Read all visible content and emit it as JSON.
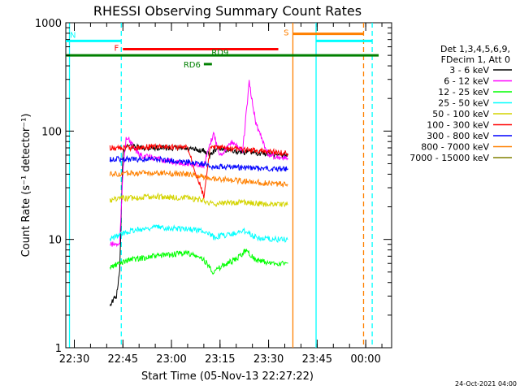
{
  "chart_data": {
    "type": "line",
    "title": "RHESSI Observing Summary Count Rates",
    "xlabel": "Start Time (05-Nov-13 22:27:22)",
    "ylabel": "Count Rate (s⁻¹ detector⁻¹)",
    "yscale": "log",
    "ylim": [
      1,
      1000
    ],
    "xlim": [
      "22:27:22",
      "00:08:00"
    ],
    "x_ticks": [
      "22:30",
      "22:45",
      "23:00",
      "23:15",
      "23:30",
      "23:45",
      "00:00"
    ],
    "y_ticks": [
      "1",
      "10",
      "100",
      "1000"
    ],
    "footer": "24-Oct-2021 04:00",
    "legend_header": [
      "Det 1,3,4,5,6,9,",
      "FDecim 1, Att 0"
    ],
    "legend_position": "right",
    "series": [
      {
        "name": "3 - 6 keV",
        "color": "#000000",
        "x": [
          "22:41",
          "22:43",
          "22:44",
          "22:45",
          "22:46",
          "22:50",
          "23:00",
          "23:10",
          "23:12",
          "23:14",
          "23:20",
          "23:30",
          "23:36"
        ],
        "y": [
          2.5,
          3,
          5,
          60,
          75,
          70,
          70,
          66,
          60,
          70,
          65,
          62,
          60
        ]
      },
      {
        "name": "6 - 12 keV",
        "color": "#ff00ff",
        "x": [
          "22:41",
          "22:44",
          "22:45",
          "22:46",
          "22:50",
          "23:00",
          "23:10",
          "23:13",
          "23:15",
          "23:19",
          "23:22",
          "23:24",
          "23:26",
          "23:30",
          "23:36"
        ],
        "y": [
          9,
          9,
          40,
          90,
          60,
          52,
          48,
          95,
          60,
          80,
          65,
          280,
          120,
          60,
          55
        ]
      },
      {
        "name": "12 - 25 keV",
        "color": "#00ff00",
        "x": [
          "22:41",
          "22:44",
          "22:47",
          "22:55",
          "23:05",
          "23:10",
          "23:13",
          "23:17",
          "23:20",
          "23:23",
          "23:26",
          "23:30",
          "23:36"
        ],
        "y": [
          5.5,
          6,
          6.5,
          7,
          7.5,
          6.5,
          5,
          6,
          6.5,
          8,
          6.5,
          6,
          6
        ]
      },
      {
        "name": "25 - 50 keV",
        "color": "#00ffff",
        "x": [
          "22:41",
          "22:44",
          "22:47",
          "22:55",
          "23:05",
          "23:10",
          "23:13",
          "23:17",
          "23:23",
          "23:26",
          "23:30",
          "23:36"
        ],
        "y": [
          10,
          11,
          12,
          13,
          12.5,
          12,
          10.5,
          11,
          12,
          10.5,
          10,
          10
        ]
      },
      {
        "name": "50 - 100 keV",
        "color": "#d4d400",
        "x": [
          "22:41",
          "22:44",
          "22:47",
          "22:55",
          "23:05",
          "23:10",
          "23:13",
          "23:17",
          "23:23",
          "23:30",
          "23:36"
        ],
        "y": [
          23,
          24,
          24,
          25,
          24,
          23,
          21,
          22,
          22,
          21,
          21
        ]
      },
      {
        "name": "100 - 300 keV",
        "color": "#ff0000",
        "x": [
          "22:41",
          "22:44",
          "22:47",
          "22:55",
          "23:05",
          "23:10",
          "23:12",
          "23:15",
          "23:20",
          "23:30",
          "23:36"
        ],
        "y": [
          70,
          70,
          70,
          72,
          70,
          25,
          70,
          70,
          68,
          65,
          62
        ]
      },
      {
        "name": "300 - 800 keV",
        "color": "#0000ff",
        "x": [
          "22:41",
          "22:44",
          "22:47",
          "22:55",
          "23:05",
          "23:10",
          "23:12",
          "23:15",
          "23:20",
          "23:30",
          "23:36"
        ],
        "y": [
          55,
          55,
          55,
          55,
          52,
          50,
          47,
          47,
          46,
          45,
          45
        ]
      },
      {
        "name": "800 - 7000 keV",
        "color": "#ff8000",
        "x": [
          "22:41",
          "22:44",
          "22:47",
          "22:55",
          "23:05",
          "23:10",
          "23:15",
          "23:20",
          "23:30",
          "23:36"
        ],
        "y": [
          40,
          40,
          41,
          41,
          40,
          38,
          36,
          35,
          33,
          32
        ]
      },
      {
        "name": "7000 - 15000 keV",
        "color": "#808000",
        "x": [],
        "y": []
      }
    ],
    "vertical_markers": [
      {
        "time": "22:28:30",
        "color": "#00ffff",
        "style": "solid"
      },
      {
        "time": "22:44:30",
        "color": "#00ffff",
        "style": "dashed"
      },
      {
        "time": "23:37:30",
        "color": "#ff8000",
        "style": "solid"
      },
      {
        "time": "23:44:40",
        "color": "#00ffff",
        "style": "solid"
      },
      {
        "time": "23:59:20",
        "color": "#ff8000",
        "style": "dashed"
      },
      {
        "time": "00:02:00",
        "color": "#00ffff",
        "style": "dashed"
      }
    ],
    "flag_bars": [
      {
        "label": "N",
        "color": "#00ffff",
        "start": "22:27:22",
        "end": "22:44:30",
        "value": 680
      },
      {
        "label": "N",
        "color": "#00ffff",
        "start": "23:44:40",
        "end": "00:02:00",
        "value": 680,
        "label_hidden": true
      },
      {
        "label": "S",
        "color": "#ff8000",
        "start": "23:37:30",
        "end": "23:59:20",
        "value": 790
      },
      {
        "label": "F",
        "color": "#ff0000",
        "start": "22:45:00",
        "end": "23:33:00",
        "value": 570
      },
      {
        "label": "RD9",
        "color": "#008000",
        "start": "22:27:22",
        "end": "00:04:00",
        "value": 500
      },
      {
        "label": "RD6",
        "color": "#008000",
        "start": "23:10:00",
        "end": "23:12:30",
        "value": 415
      }
    ]
  }
}
